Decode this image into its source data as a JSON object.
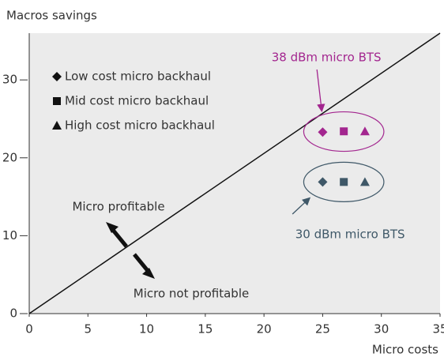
{
  "chart_data": {
    "type": "scatter",
    "title": "Macros savings",
    "x_label": "Micro costs",
    "xlim": [
      0,
      35
    ],
    "xticks": [
      0,
      5,
      10,
      15,
      20,
      25,
      30,
      35
    ],
    "ylim": [
      0,
      36
    ],
    "yticks": [
      0,
      10,
      20,
      30
    ],
    "diagonal": {
      "x": [
        0,
        35
      ],
      "y": [
        0,
        36
      ]
    },
    "legend": [
      {
        "label": "Low cost micro backhaul",
        "marker": "diamond"
      },
      {
        "label": "Mid cost micro backhaul",
        "marker": "square"
      },
      {
        "label": "High cost micro backhaul",
        "marker": "triangle"
      }
    ],
    "series": [
      {
        "name": "38 dBm micro BTS",
        "color": "#a3268f",
        "x": [
          25,
          26.8,
          28.6
        ],
        "values": [
          23.3,
          23.4,
          23.4
        ]
      },
      {
        "name": "30 dBm micro BTS",
        "color": "#3f5868",
        "x": [
          25,
          26.8,
          28.6
        ],
        "values": [
          16.9,
          16.9,
          16.9
        ]
      }
    ],
    "annotations": [
      "Micro profitable",
      "Micro not profitable"
    ]
  }
}
